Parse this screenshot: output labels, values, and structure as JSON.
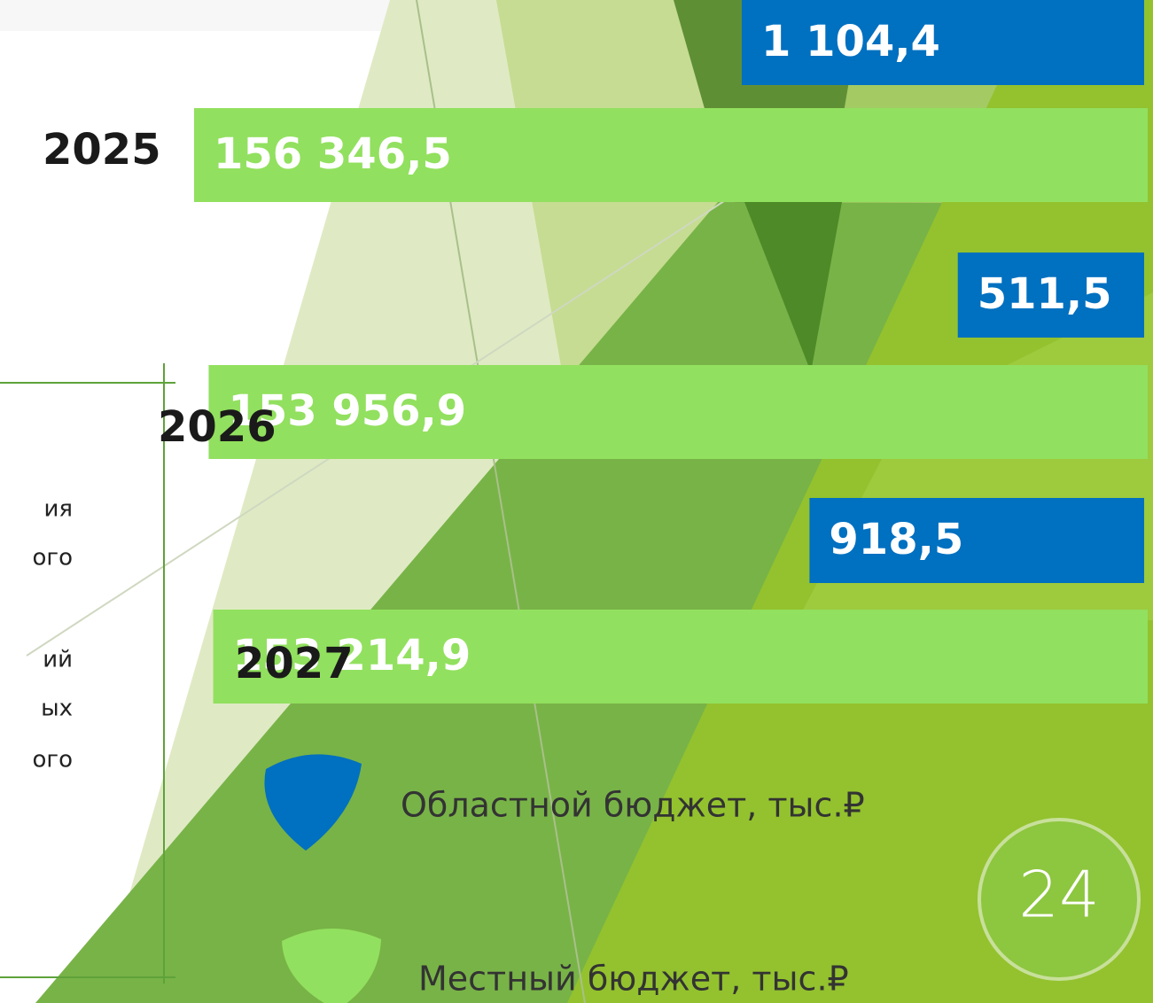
{
  "chart_data": {
    "type": "bar",
    "orientation": "horizontal",
    "categories": [
      "2025",
      "2026",
      "2027"
    ],
    "series": [
      {
        "name": "Областной бюджет, тыс.₽",
        "color": "#0070c0",
        "values": [
          1104.4,
          511.5,
          918.5
        ],
        "value_labels": [
          "1 104,4",
          "511,5",
          "918,5"
        ]
      },
      {
        "name": "Местный бюджет, тыс.₽",
        "color": "#92e05f",
        "values": [
          156346.5,
          153956.9,
          153214.9
        ],
        "value_labels": [
          "156 346,5",
          "153 956,9",
          "153 214,9"
        ]
      }
    ],
    "annotations": [
      "ия",
      "ого",
      "ий",
      "ых",
      "ого"
    ],
    "page_number": "24"
  }
}
